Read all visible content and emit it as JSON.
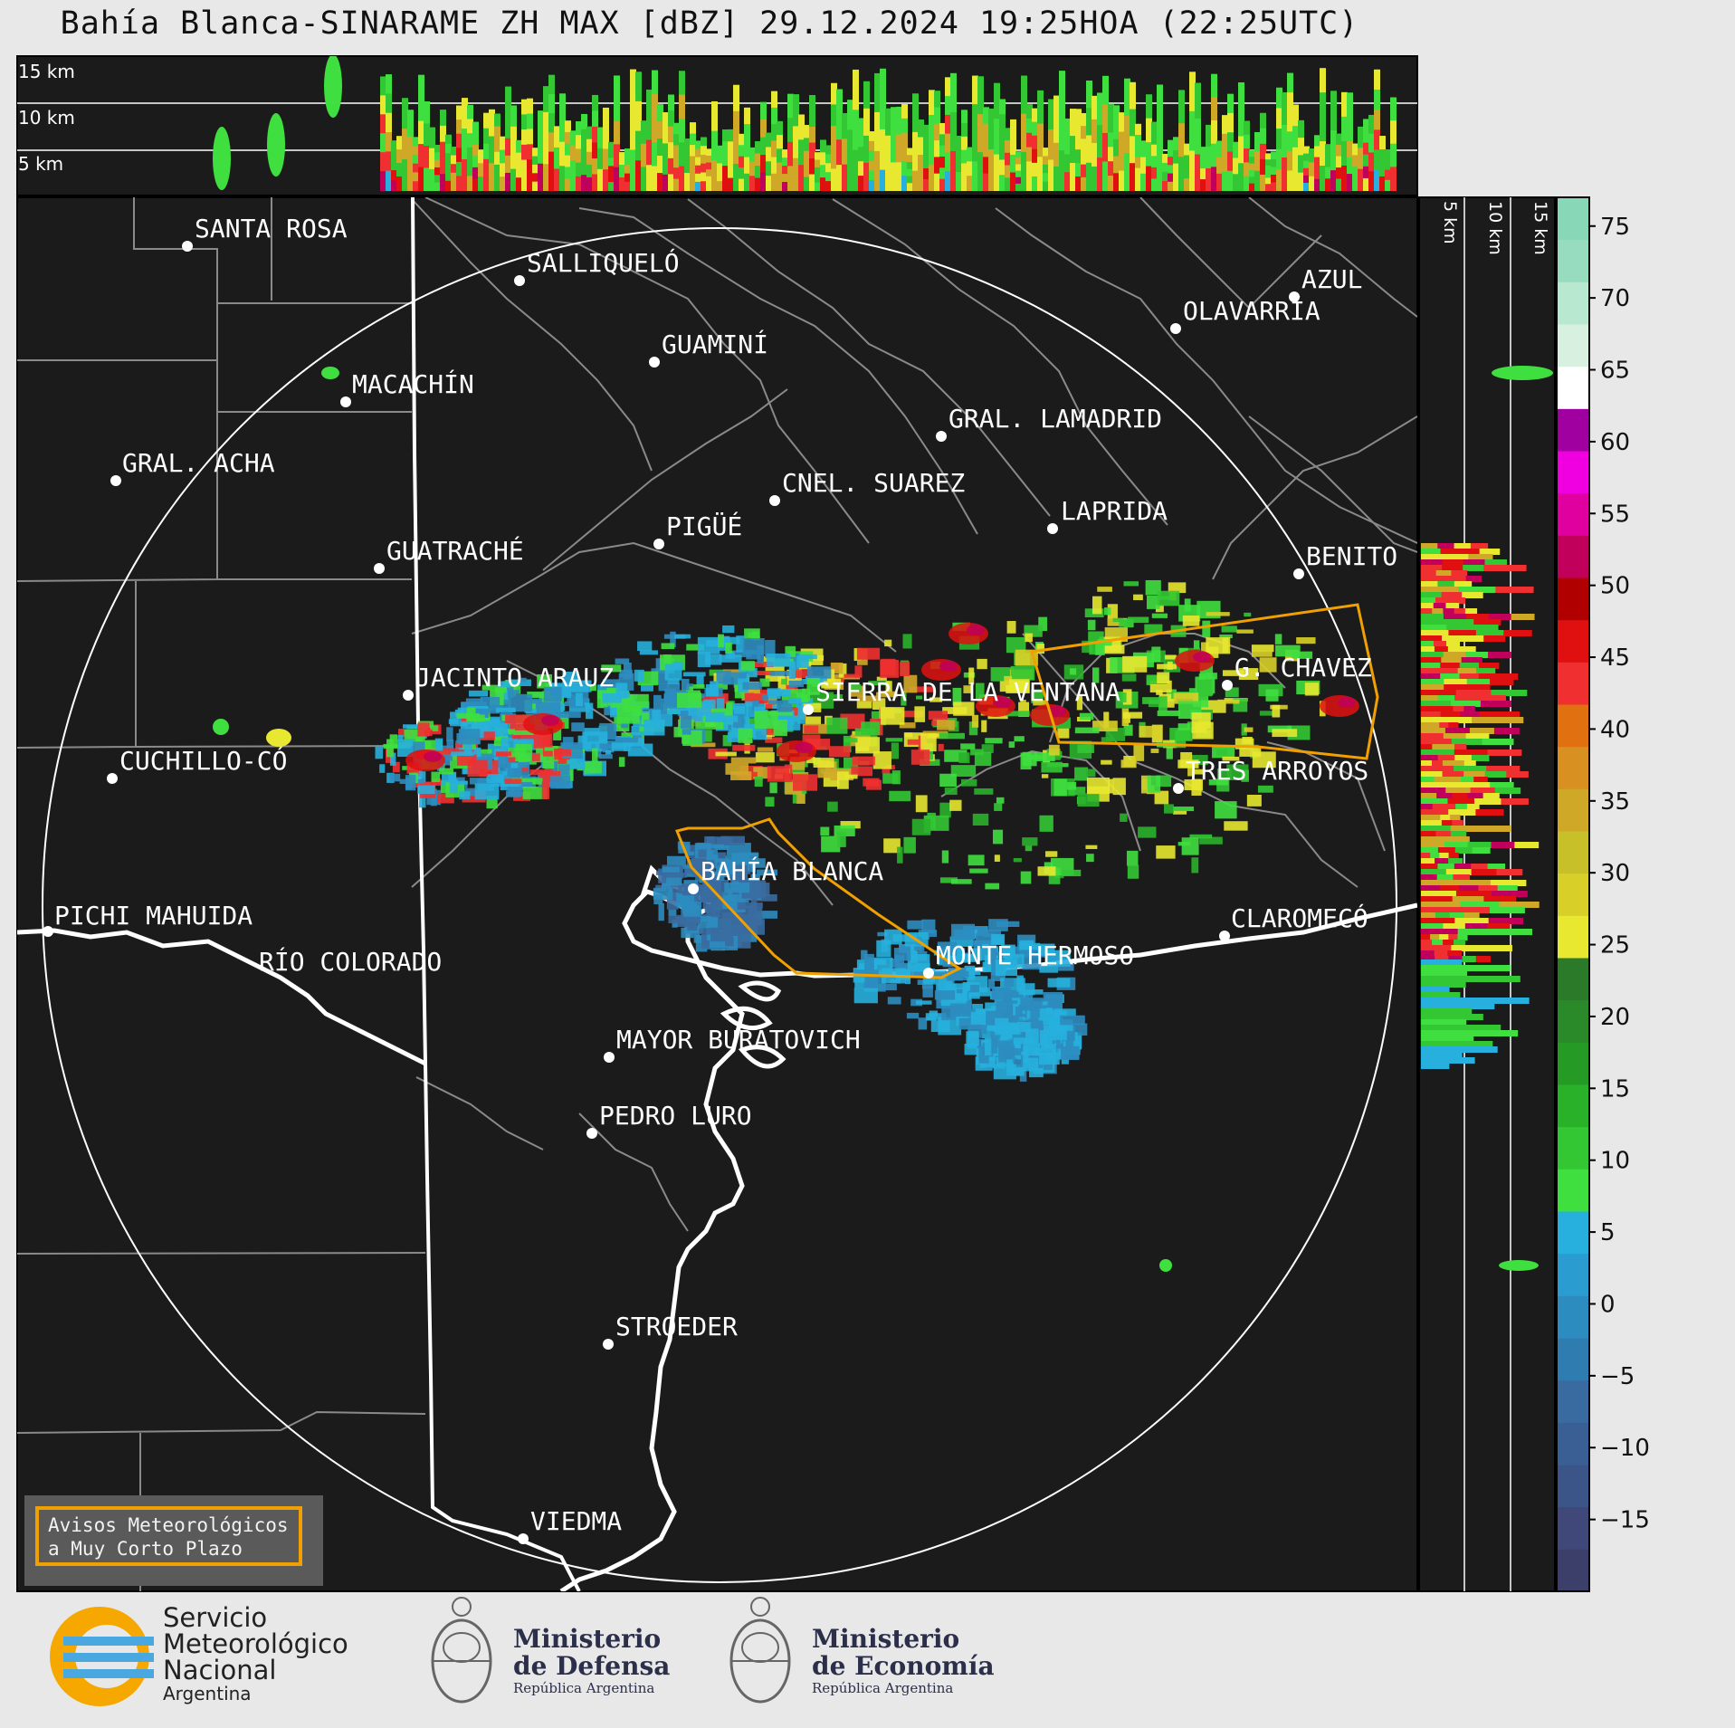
{
  "title": "Bahía Blanca-SINARAME ZH MAX [dBZ] 29.12.2024 19:25HOA (22:25UTC)",
  "top_panel_labels": [
    "15 km",
    "10 km",
    "5 km"
  ],
  "side_panel_labels": [
    "5 km",
    "10 km",
    "15 km"
  ],
  "colorbar_ticks": [
    "75",
    "70",
    "65",
    "60",
    "55",
    "50",
    "45",
    "40",
    "35",
    "30",
    "25",
    "20",
    "15",
    "10",
    "5",
    "0",
    "−5",
    "−10",
    "−15"
  ],
  "colorbar_colors": [
    "#3b3f6a",
    "#40487a",
    "#3c5588",
    "#3a5f94",
    "#3a6ba0",
    "#2e7cb0",
    "#2d8cbf",
    "#2a9ccf",
    "#27b0dd",
    "#3fdf3f",
    "#33c833",
    "#2ab12a",
    "#259b25",
    "#2a8a2a",
    "#2a7a2a",
    "#e8e830",
    "#d8d028",
    "#c8c028",
    "#d0a828",
    "#d89020",
    "#e07010",
    "#f03030",
    "#e01010",
    "#b00000",
    "#c0005a",
    "#e000a0",
    "#f000e0",
    "#a000a0",
    "#ffffff",
    "#d8f0e0",
    "#b8e8d0",
    "#98dcc0",
    "#88d8b8"
  ],
  "cities": [
    {
      "name": "SANTA ROSA"
    },
    {
      "name": "SALLIQUELÓ"
    },
    {
      "name": "AZUL"
    },
    {
      "name": "OLAVARRÍA"
    },
    {
      "name": "GUAMINÍ"
    },
    {
      "name": "MACACHÍN"
    },
    {
      "name": "GRAL. LAMADRID"
    },
    {
      "name": "GRAL. ACHA"
    },
    {
      "name": "CNEL. SUAREZ"
    },
    {
      "name": "LAPRIDA"
    },
    {
      "name": "PIGÜÉ"
    },
    {
      "name": "GUATRACHÉ"
    },
    {
      "name": "BENITO"
    },
    {
      "name": "G. CHAVEZ"
    },
    {
      "name": "JACINTO ARAUZ"
    },
    {
      "name": "SIERRA DE LA VENTANA"
    },
    {
      "name": "CUCHILLO-CÓ"
    },
    {
      "name": "TRES ARROYOS"
    },
    {
      "name": "BAHÍA BLANCA"
    },
    {
      "name": "PICHI MAHUIDA"
    },
    {
      "name": "CLAROMECÓ"
    },
    {
      "name": "MONTE HERMOSO"
    },
    {
      "name": "RÍO COLORADO"
    },
    {
      "name": "MAYOR BURATOVICH"
    },
    {
      "name": "PEDRO LURO"
    },
    {
      "name": "STROEDER"
    },
    {
      "name": "VIEDMA"
    }
  ],
  "legend_box": {
    "line1": "Avisos Meteorológicos",
    "line2": "a Muy Corto Plazo",
    "color": "#f0a000"
  },
  "footer": {
    "smn_line1": "Servicio",
    "smn_line2": "Meteorológico",
    "smn_line3": "Nacional",
    "smn_line4": "Argentina",
    "defensa_line1": "Ministerio",
    "defensa_line2": "de Defensa",
    "defensa_line3": "República Argentina",
    "economia_line1": "Ministerio",
    "economia_line2": "de Economía",
    "economia_line3": "República Argentina"
  }
}
